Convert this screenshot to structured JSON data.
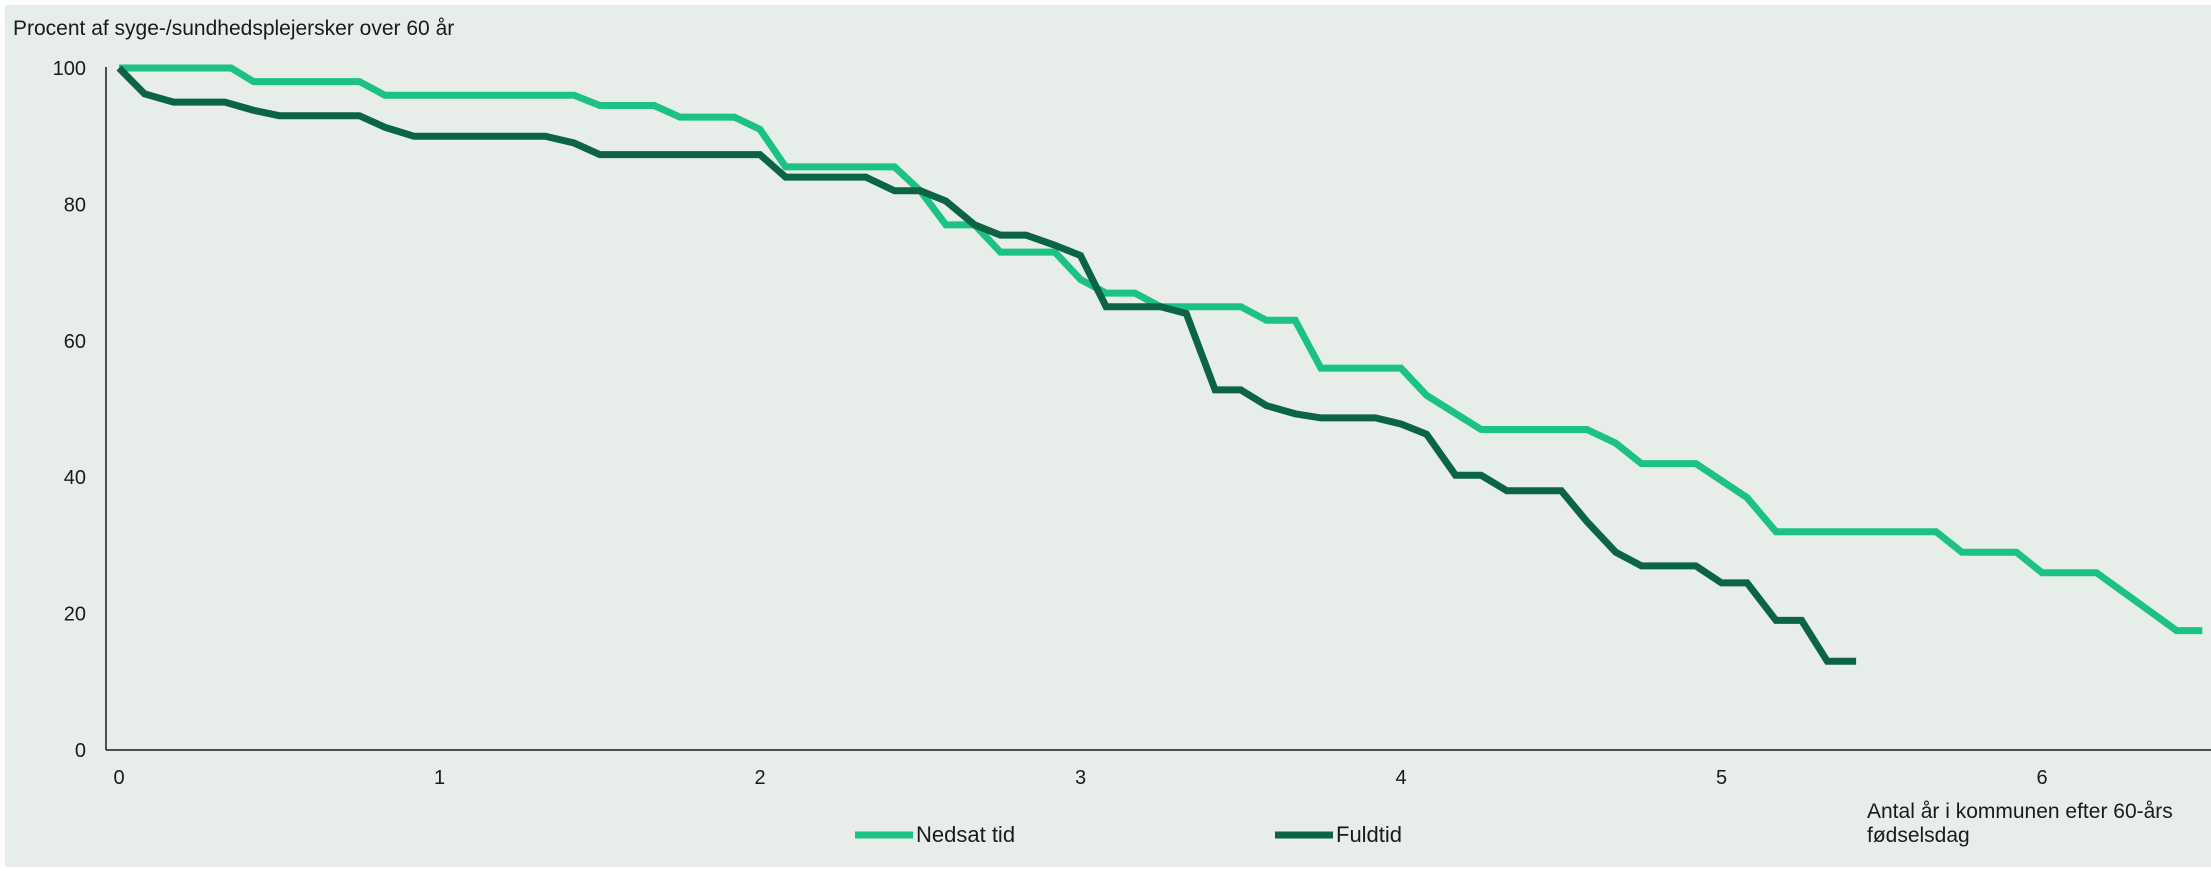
{
  "chart_data": {
    "type": "line",
    "ylabel": "Procent af syge-/sundhedsplejersker over 60 år",
    "xlabel_lines": [
      "Antal år i kommunen efter 60-års",
      "fødselsdag"
    ],
    "xlim": [
      0,
      6.5
    ],
    "ylim": [
      0,
      100
    ],
    "xticks": [
      0,
      1,
      2,
      3,
      4,
      5,
      6
    ],
    "yticks": [
      0,
      20,
      40,
      60,
      80,
      100
    ],
    "grid": false,
    "legend_position": "bottom-center",
    "series": [
      {
        "name": "Nedsat tid",
        "color": "#1bc283",
        "points": [
          [
            0.0,
            100
          ],
          [
            0.35,
            100
          ],
          [
            0.42,
            98
          ],
          [
            0.75,
            98
          ],
          [
            0.83,
            96
          ],
          [
            1.42,
            96
          ],
          [
            1.5,
            94.5
          ],
          [
            1.67,
            94.5
          ],
          [
            1.75,
            92.8
          ],
          [
            1.92,
            92.8
          ],
          [
            2.0,
            91
          ],
          [
            2.08,
            85.5
          ],
          [
            2.42,
            85.5
          ],
          [
            2.5,
            82
          ],
          [
            2.58,
            77
          ],
          [
            2.67,
            77
          ],
          [
            2.75,
            73
          ],
          [
            2.92,
            73
          ],
          [
            3.0,
            69
          ],
          [
            3.08,
            67
          ],
          [
            3.17,
            67
          ],
          [
            3.25,
            65
          ],
          [
            3.5,
            65
          ],
          [
            3.58,
            63
          ],
          [
            3.67,
            63
          ],
          [
            3.75,
            56
          ],
          [
            4.0,
            56
          ],
          [
            4.08,
            52
          ],
          [
            4.25,
            47
          ],
          [
            4.58,
            47
          ],
          [
            4.67,
            45
          ],
          [
            4.75,
            42
          ],
          [
            4.92,
            42
          ],
          [
            5.08,
            37
          ],
          [
            5.17,
            32
          ],
          [
            5.67,
            32
          ],
          [
            5.75,
            29
          ],
          [
            5.92,
            29
          ],
          [
            6.0,
            26
          ],
          [
            6.17,
            26
          ],
          [
            6.42,
            17.5
          ],
          [
            6.5,
            17.5
          ]
        ]
      },
      {
        "name": "Fuldtid",
        "color": "#0b6446",
        "points": [
          [
            0.0,
            100
          ],
          [
            0.08,
            96.2
          ],
          [
            0.17,
            95
          ],
          [
            0.33,
            95
          ],
          [
            0.42,
            93.8
          ],
          [
            0.5,
            93
          ],
          [
            0.75,
            93
          ],
          [
            0.83,
            91.3
          ],
          [
            0.92,
            90
          ],
          [
            1.33,
            90
          ],
          [
            1.42,
            89
          ],
          [
            1.5,
            87.3
          ],
          [
            2.0,
            87.3
          ],
          [
            2.08,
            84
          ],
          [
            2.33,
            84
          ],
          [
            2.42,
            82
          ],
          [
            2.5,
            82
          ],
          [
            2.58,
            80.5
          ],
          [
            2.67,
            77
          ],
          [
            2.75,
            75.5
          ],
          [
            2.83,
            75.5
          ],
          [
            2.92,
            74
          ],
          [
            3.0,
            72.5
          ],
          [
            3.08,
            65
          ],
          [
            3.25,
            65
          ],
          [
            3.33,
            64
          ],
          [
            3.42,
            52.8
          ],
          [
            3.5,
            52.8
          ],
          [
            3.58,
            50.5
          ],
          [
            3.67,
            49.3
          ],
          [
            3.75,
            48.7
          ],
          [
            3.92,
            48.7
          ],
          [
            4.0,
            47.8
          ],
          [
            4.08,
            46.3
          ],
          [
            4.17,
            40.3
          ],
          [
            4.25,
            40.3
          ],
          [
            4.33,
            38
          ],
          [
            4.5,
            38
          ],
          [
            4.58,
            33.5
          ],
          [
            4.67,
            29
          ],
          [
            4.75,
            27
          ],
          [
            4.92,
            27
          ],
          [
            5.0,
            24.5
          ],
          [
            5.08,
            24.5
          ],
          [
            5.17,
            19
          ],
          [
            5.25,
            19
          ],
          [
            5.33,
            13
          ],
          [
            5.42,
            13
          ]
        ]
      }
    ]
  }
}
